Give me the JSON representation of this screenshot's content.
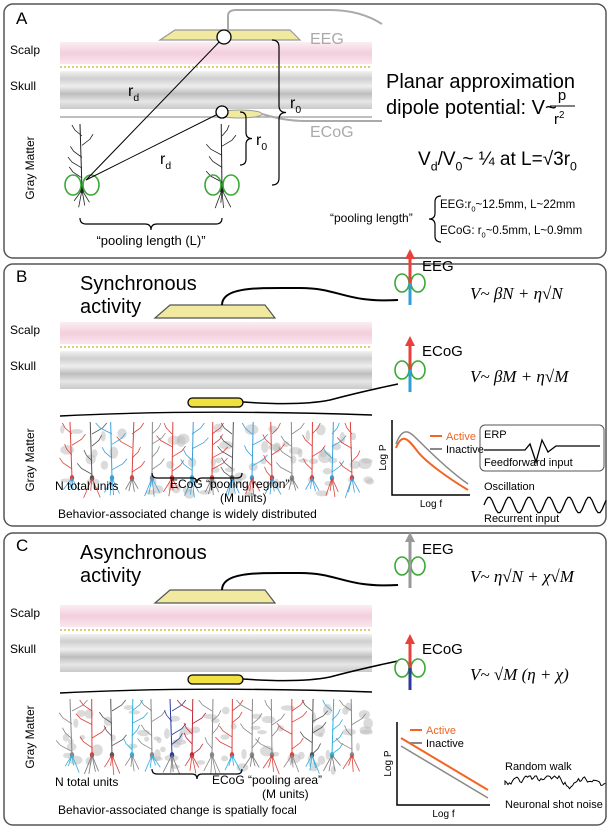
{
  "panel_a": {
    "label": "A",
    "layers": [
      "Scalp",
      "Skull",
      "Gray Matter"
    ],
    "eeg": "EEG",
    "ecog": "ECoG",
    "r_d": [
      "r",
      "d"
    ],
    "r_0": [
      "r",
      "0"
    ],
    "title": [
      "Planar approximation",
      "dipole potential: V~"
    ],
    "fraction": [
      "p",
      "r",
      "2"
    ],
    "ratio": [
      "V",
      "d",
      "/",
      "V",
      "0",
      "~ ¼ at L=",
      "√3",
      "r",
      "0"
    ],
    "pooling_length_l": "“pooling length (L)”",
    "pooling_length": "“pooling length”",
    "pooling_rows": [
      [
        "EEG:r",
        "0",
        "~12.5mm, L~22mm"
      ],
      [
        "ECoG: r",
        "0",
        "~0.5mm, L~0.9mm"
      ]
    ]
  },
  "panel_b": {
    "label": "B",
    "heading": [
      "Synchronous",
      "activity"
    ],
    "layers": [
      "Scalp",
      "Skull",
      "Gray Matter"
    ],
    "eeg": "EEG",
    "ecog": "ECoG",
    "eeg_formula": "V~ βN + η√N",
    "ecog_formula": "V~ βM + η√M",
    "n_units": "N total units",
    "pooling": "ECoG “pooling region”",
    "m_units": "(M units)",
    "caption": "Behavior-associated change is widely distributed",
    "legend": [
      "Active",
      "Inactive"
    ],
    "y_axis": "Log P",
    "x_axis": "Log f",
    "erp": "ERP",
    "erp_caption": "Feedforward input",
    "osc": "Oscillation",
    "osc_caption": "Recurrent input"
  },
  "panel_c": {
    "label": "C",
    "heading": [
      "Asynchronous",
      "activity"
    ],
    "layers": [
      "Scalp",
      "Skull",
      "Gray Matter"
    ],
    "eeg": "EEG",
    "ecog": "ECoG",
    "eeg_formula": "V~ η√N + χ√M",
    "ecog_formula": "V~ √M (η + χ)",
    "n_units": "N total units",
    "pooling": "ECoG “pooling area”",
    "m_units": "(M units)",
    "caption": "Behavior-associated change is spatially focal",
    "legend": [
      "Active",
      "Inactive"
    ],
    "y_axis": "Log P",
    "x_axis": "Log f",
    "noise_title": "Random walk",
    "noise_caption": "Neuronal shot noise"
  }
}
